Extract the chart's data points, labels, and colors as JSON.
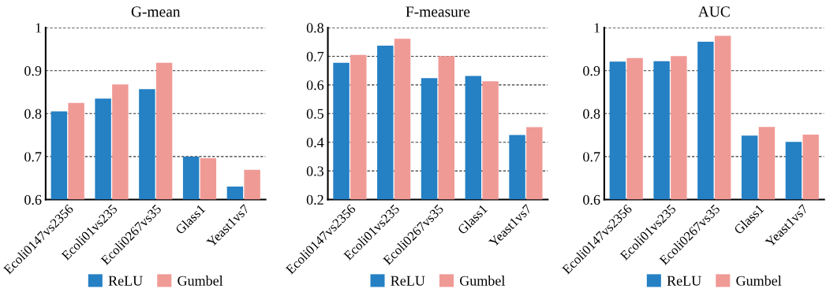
{
  "chart_data": [
    {
      "type": "bar",
      "title": "G-mean",
      "categories": [
        "Ecoli0147vs2356",
        "Ecoli01vs235",
        "Ecoli0267vs35",
        "Glass1",
        "Yeast1vs7"
      ],
      "ylim": [
        0.6,
        1
      ],
      "yticks": [
        0.6,
        0.7,
        0.8,
        0.9,
        1
      ],
      "grid": "y",
      "legend": "bottom",
      "series": [
        {
          "name": "ReLU",
          "color": "#2580c4",
          "values": [
            0.805,
            0.835,
            0.857,
            0.7,
            0.63
          ]
        },
        {
          "name": "Gumbel",
          "color": "#f09a96",
          "values": [
            0.825,
            0.868,
            0.918,
            0.696,
            0.669
          ]
        }
      ]
    },
    {
      "type": "bar",
      "title": "F-measure",
      "categories": [
        "Ecoli0147vs2356",
        "Ecoli01vs235",
        "Ecoli0267vs35",
        "Glass1",
        "Yeast1vs7"
      ],
      "ylim": [
        0.2,
        0.8
      ],
      "yticks": [
        0.2,
        0.3,
        0.4,
        0.5,
        0.6,
        0.7,
        0.8
      ],
      "grid": "y",
      "legend": "bottom",
      "series": [
        {
          "name": "ReLU",
          "color": "#2580c4",
          "values": [
            0.677,
            0.737,
            0.624,
            0.631,
            0.425
          ]
        },
        {
          "name": "Gumbel",
          "color": "#f09a96",
          "values": [
            0.705,
            0.761,
            0.701,
            0.613,
            0.453
          ]
        }
      ]
    },
    {
      "type": "bar",
      "title": "AUC",
      "categories": [
        "Ecoli0147vs2356",
        "Ecoli01vs235",
        "Ecoli0267vs35",
        "Glass1",
        "Yeast1vs7"
      ],
      "ylim": [
        0.6,
        1
      ],
      "yticks": [
        0.6,
        0.7,
        0.8,
        0.9,
        1
      ],
      "grid": "y",
      "legend": "bottom",
      "series": [
        {
          "name": "ReLU",
          "color": "#2580c4",
          "values": [
            0.921,
            0.922,
            0.967,
            0.749,
            0.734
          ]
        },
        {
          "name": "Gumbel",
          "color": "#f09a96",
          "values": [
            0.929,
            0.934,
            0.981,
            0.769,
            0.751
          ]
        }
      ]
    }
  ]
}
